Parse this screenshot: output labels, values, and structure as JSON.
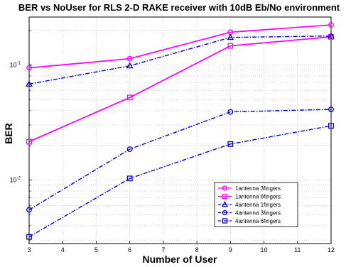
{
  "chart_data": {
    "type": "line",
    "title": "BER vs NoUser for RLS 2-D RAKE receiver with 10dB Eb/No environment",
    "xlabel": "Number of User",
    "ylabel": "BER",
    "x": [
      3,
      6,
      9,
      12
    ],
    "xlim": [
      3,
      12
    ],
    "ylim": [
      0.0028,
      0.26
    ],
    "yscale": "log",
    "grid": true,
    "legend_position": "bottom-right",
    "x_ticks": [
      "3",
      "4",
      "5",
      "6",
      "7",
      "8",
      "9",
      "10",
      "11",
      "12"
    ],
    "y_ticks": [
      {
        "value": 0.01,
        "base": "10",
        "exp": "-2"
      },
      {
        "value": 0.1,
        "base": "10",
        "exp": "-1"
      }
    ],
    "series": [
      {
        "name": "1antenna 3fingers",
        "values": [
          0.094,
          0.113,
          0.192,
          0.222
        ],
        "color": "#ff00ff",
        "marker": "circle",
        "dash": "solid"
      },
      {
        "name": "1antenna 6fingers",
        "values": [
          0.0215,
          0.052,
          0.146,
          0.175
        ],
        "color": "#ff00ff",
        "marker": "square",
        "dash": "solid"
      },
      {
        "name": "4antenna 1fingers",
        "values": [
          0.068,
          0.098,
          0.173,
          0.178
        ],
        "color": "#0000cc",
        "marker": "triangle",
        "dash": "dashdot"
      },
      {
        "name": "4antenna 3fingers",
        "values": [
          0.0055,
          0.0185,
          0.039,
          0.041
        ],
        "color": "#0000cc",
        "marker": "circle",
        "dash": "dashdot"
      },
      {
        "name": "4antenna 6fingers",
        "values": [
          0.0032,
          0.0103,
          0.0205,
          0.0295
        ],
        "color": "#0000cc",
        "marker": "square",
        "dash": "dashdot"
      }
    ]
  }
}
